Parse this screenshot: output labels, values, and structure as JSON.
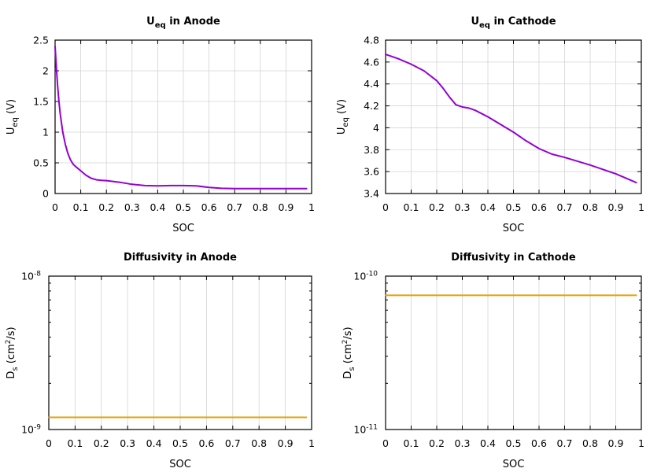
{
  "chart_data": [
    {
      "type": "line",
      "title": {
        "main": "U",
        "sub": "eq",
        "rest": " in Anode"
      },
      "xlabel": "SOC",
      "ylabel": {
        "main": "U",
        "sub": "eq",
        "rest": " (V)"
      },
      "xlim": [
        0,
        1
      ],
      "ylim": [
        0,
        2.5
      ],
      "xticks": [
        "0",
        "0.1",
        "0.2",
        "0.3",
        "0.4",
        "0.5",
        "0.6",
        "0.7",
        "0.8",
        "0.9",
        "1"
      ],
      "yticks": [
        "0",
        "0.5",
        "1",
        "1.5",
        "2",
        "2.5"
      ],
      "grid": true,
      "color": "#9400d3",
      "series": [
        {
          "x": [
            0.0,
            0.005,
            0.01,
            0.015,
            0.02,
            0.03,
            0.04,
            0.05,
            0.06,
            0.07,
            0.08,
            0.1,
            0.12,
            0.14,
            0.16,
            0.18,
            0.2,
            0.25,
            0.3,
            0.35,
            0.4,
            0.45,
            0.5,
            0.55,
            0.6,
            0.65,
            0.7,
            0.75,
            0.8,
            0.85,
            0.9,
            0.95,
            0.98
          ],
          "y": [
            2.4,
            2.05,
            1.75,
            1.5,
            1.3,
            1.0,
            0.8,
            0.65,
            0.55,
            0.48,
            0.44,
            0.37,
            0.3,
            0.25,
            0.225,
            0.215,
            0.21,
            0.185,
            0.15,
            0.13,
            0.125,
            0.13,
            0.13,
            0.125,
            0.1,
            0.085,
            0.08,
            0.08,
            0.08,
            0.08,
            0.08,
            0.08,
            0.08
          ]
        }
      ]
    },
    {
      "type": "line",
      "title": {
        "main": "U",
        "sub": "eq",
        "rest": " in Cathode"
      },
      "xlabel": "SOC",
      "ylabel": {
        "main": "U",
        "sub": "eq",
        "rest": " (V)"
      },
      "xlim": [
        0,
        1
      ],
      "ylim": [
        3.4,
        4.8
      ],
      "xticks": [
        "0",
        "0.1",
        "0.2",
        "0.3",
        "0.4",
        "0.5",
        "0.6",
        "0.7",
        "0.8",
        "0.9",
        "1"
      ],
      "yticks": [
        "3.4",
        "3.6",
        "3.8",
        "4",
        "4.2",
        "4.4",
        "4.6",
        "4.8"
      ],
      "grid": true,
      "color": "#9400d3",
      "series": [
        {
          "x": [
            0.0,
            0.05,
            0.1,
            0.15,
            0.2,
            0.225,
            0.25,
            0.275,
            0.3,
            0.325,
            0.35,
            0.375,
            0.4,
            0.45,
            0.5,
            0.55,
            0.6,
            0.65,
            0.7,
            0.8,
            0.9,
            0.98
          ],
          "y": [
            4.67,
            4.63,
            4.58,
            4.52,
            4.43,
            4.36,
            4.28,
            4.21,
            4.19,
            4.18,
            4.16,
            4.13,
            4.1,
            4.03,
            3.96,
            3.88,
            3.81,
            3.76,
            3.73,
            3.66,
            3.58,
            3.5
          ]
        }
      ]
    },
    {
      "type": "line",
      "title": {
        "main": "Diffusivity in Anode"
      },
      "xlabel": "SOC",
      "ylabel": {
        "main": "D",
        "sub": "s",
        "rest": " (cm",
        "sup": "2",
        "rest2": "/s)"
      },
      "xlim": [
        0,
        1
      ],
      "ylim": [
        1e-09,
        1e-08
      ],
      "yscale": "log",
      "xticks": [
        "0",
        "0.1",
        "0.2",
        "0.3",
        "0.4",
        "0.5",
        "0.6",
        "0.7",
        "0.8",
        "0.9",
        "1"
      ],
      "yticks_log": [
        {
          "base": "10",
          "exp": "-9"
        },
        {
          "base": "10",
          "exp": "-8"
        }
      ],
      "grid": true,
      "color": "#e69f00",
      "series": [
        {
          "x": [
            0.0,
            0.98
          ],
          "y": [
            1.2e-09,
            1.2e-09
          ]
        }
      ]
    },
    {
      "type": "line",
      "title": {
        "main": "Diffusivity in Cathode"
      },
      "xlabel": "SOC",
      "ylabel": {
        "main": "D",
        "sub": "s",
        "rest": " (cm",
        "sup": "2",
        "rest2": "/s)"
      },
      "xlim": [
        0,
        1
      ],
      "ylim": [
        1e-11,
        1e-10
      ],
      "yscale": "log",
      "xticks": [
        "0",
        "0.1",
        "0.2",
        "0.3",
        "0.4",
        "0.5",
        "0.6",
        "0.7",
        "0.8",
        "0.9",
        "1"
      ],
      "yticks_log": [
        {
          "base": "10",
          "exp": "-11"
        },
        {
          "base": "10",
          "exp": "-10"
        }
      ],
      "grid": true,
      "color": "#e69f00",
      "series": [
        {
          "x": [
            0.0,
            0.98
          ],
          "y": [
            7.5e-11,
            7.5e-11
          ]
        }
      ]
    }
  ]
}
